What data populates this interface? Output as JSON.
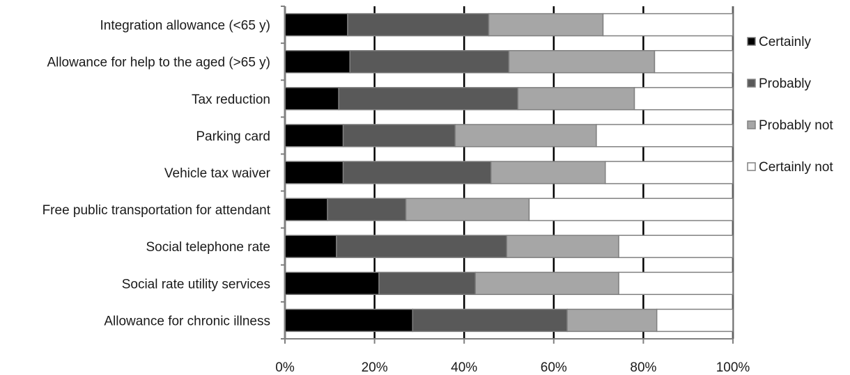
{
  "chart_data": {
    "type": "bar",
    "orientation": "horizontal",
    "stacked": "percent",
    "title": "",
    "xlabel": "",
    "ylabel": "",
    "xlim": [
      0,
      100
    ],
    "x_ticks": [
      "0%",
      "20%",
      "40%",
      "60%",
      "80%",
      "100%"
    ],
    "grid": true,
    "legend_position": "right",
    "categories": [
      "Integration allowance (<65 y)",
      "Allowance for help to the aged (>65 y)",
      "Tax reduction",
      "Parking card",
      "Vehicle tax waiver",
      "Free public transportation for attendant",
      "Social telephone rate",
      "Social rate utility services",
      "Allowance for chronic illness"
    ],
    "series": [
      {
        "name": "Certainly",
        "color": "#000000",
        "values": [
          14,
          14.5,
          12,
          13,
          13,
          9.5,
          11.5,
          21,
          28.5
        ]
      },
      {
        "name": "Probably",
        "color": "#595959",
        "values": [
          31.5,
          35.5,
          40,
          25,
          33,
          17.5,
          38,
          21.5,
          34.5
        ]
      },
      {
        "name": "Probably not",
        "color": "#a6a6a6",
        "values": [
          25.5,
          32.5,
          26,
          31.5,
          25.5,
          27.5,
          25,
          32,
          20
        ]
      },
      {
        "name": "Certainly not",
        "color": "#ffffff",
        "values": [
          29,
          17.5,
          22,
          30.5,
          28.5,
          45.5,
          25.5,
          25.5,
          17
        ]
      }
    ]
  }
}
